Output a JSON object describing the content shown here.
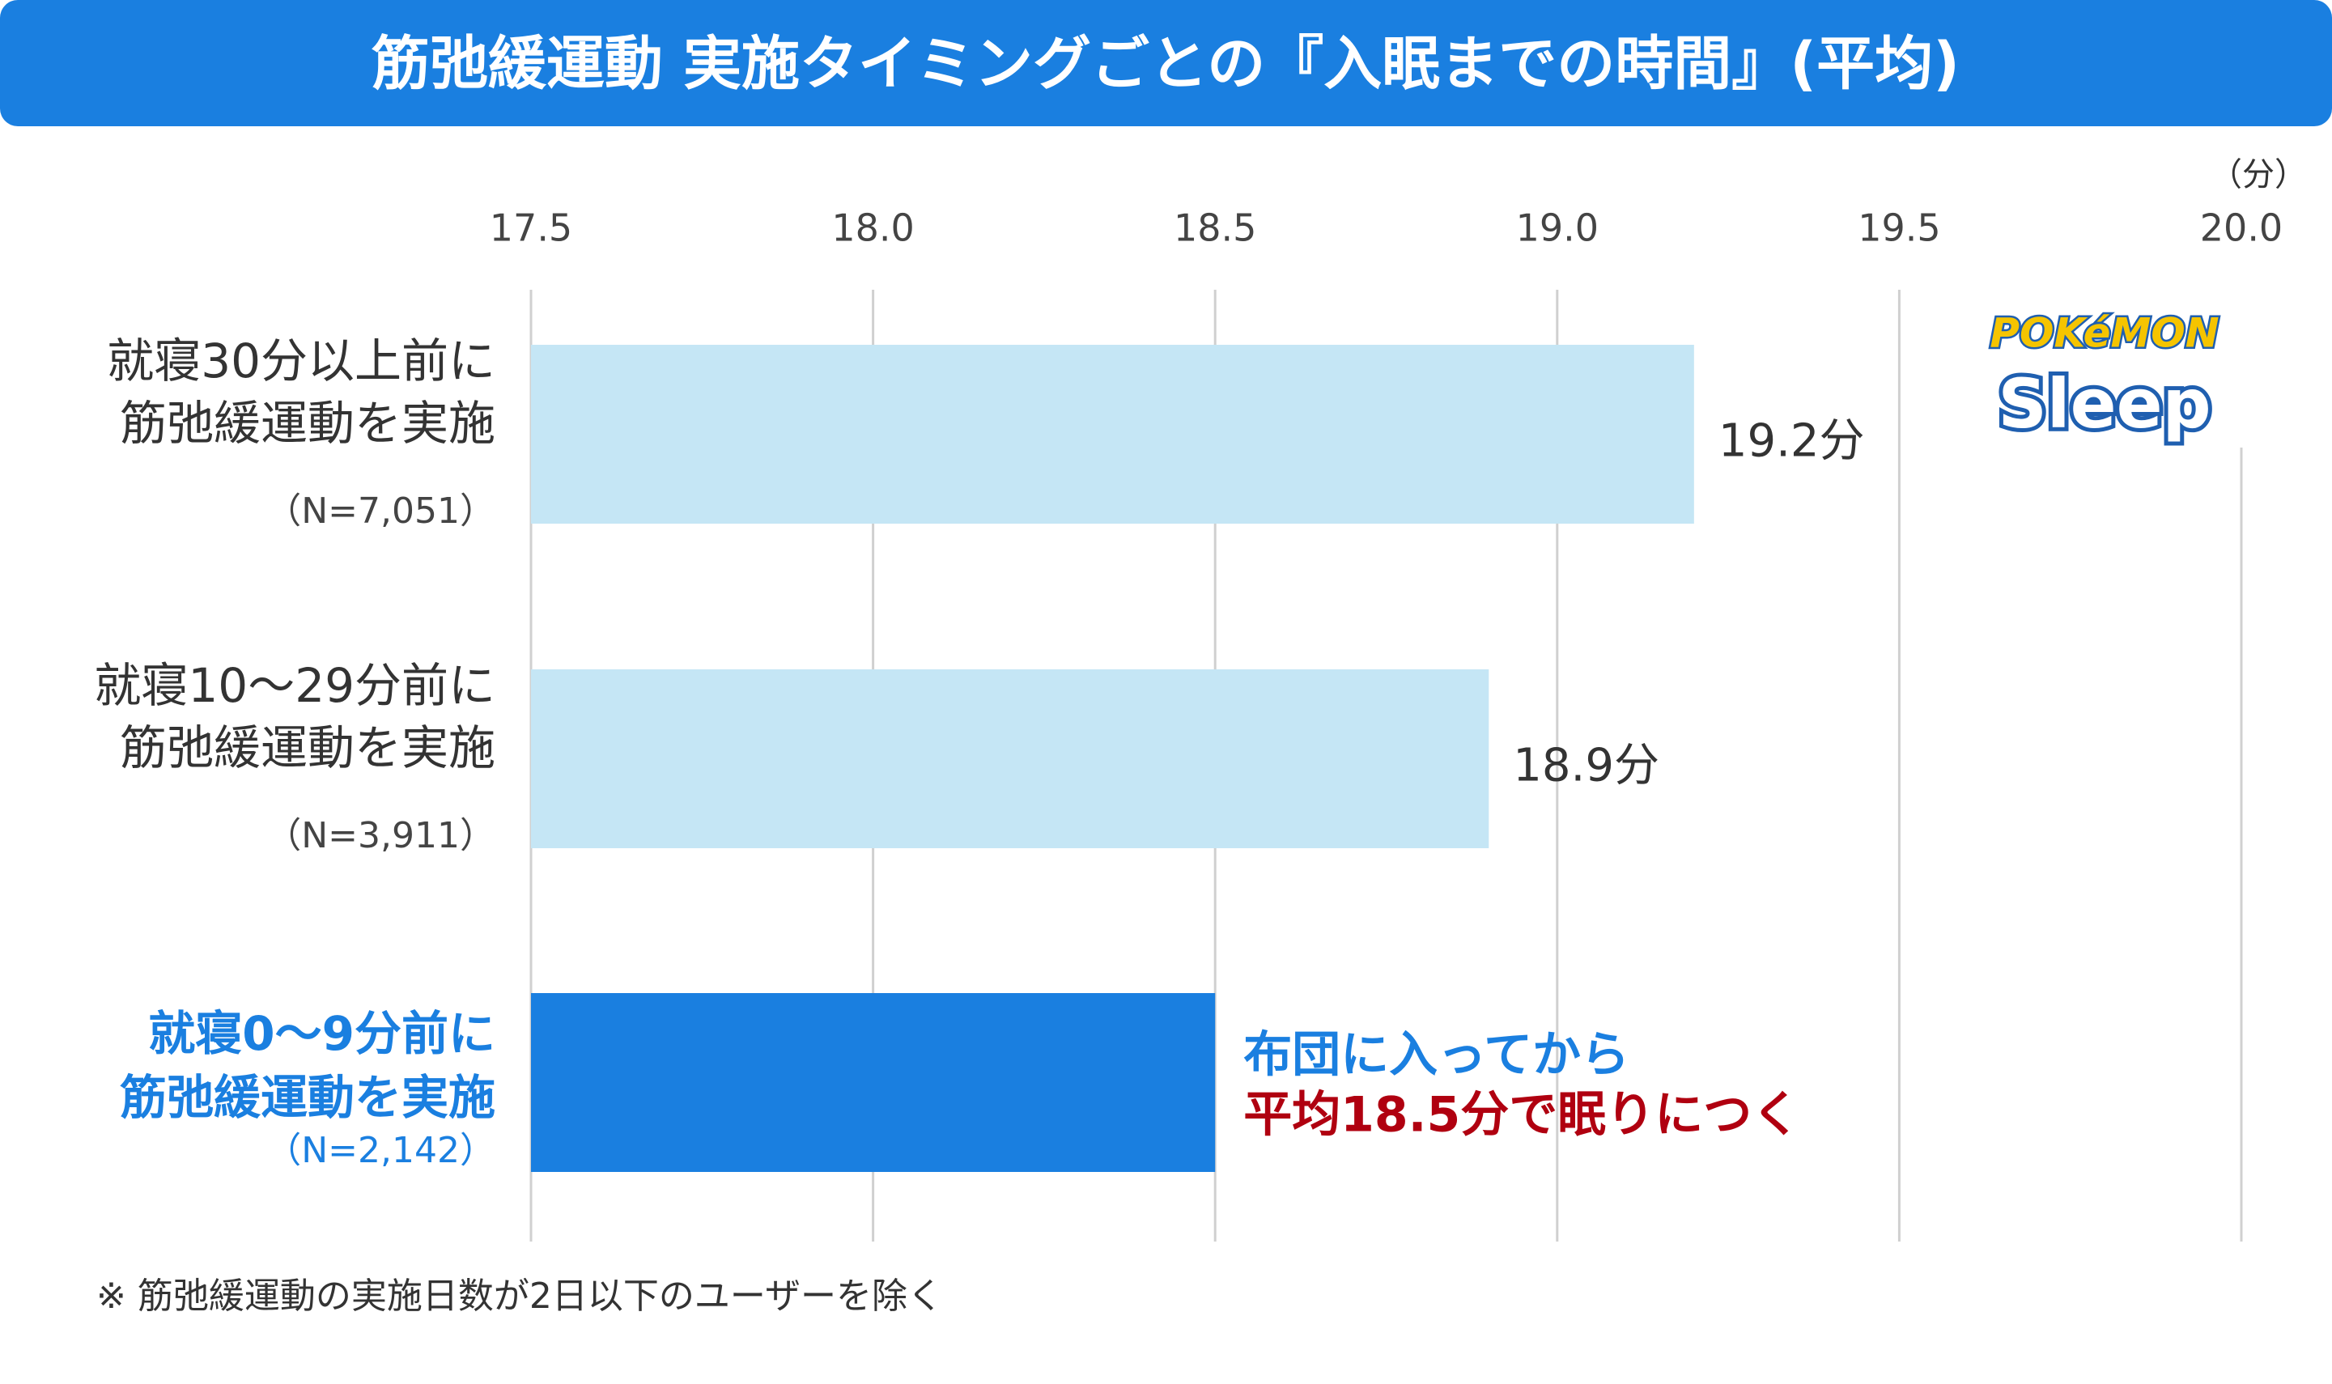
{
  "chart_data": {
    "type": "barh",
    "title": "筋弛緩運動 実施タイミングごとの『入眠までの時間』(平均)",
    "x_unit_label": "（分）",
    "categories": [
      [
        "就寝30分以上前に",
        "筋弛緩運動を実施"
      ],
      [
        "就寝10～29分前に",
        "筋弛緩運動を実施"
      ],
      [
        "就寝0～9分前に",
        "筋弛緩運動を実施"
      ]
    ],
    "sample_sizes": [
      "（N=7,051）",
      "（N=3,911）",
      "（N=2,142）"
    ],
    "values": [
      19.2,
      18.9,
      18.5
    ],
    "value_labels": [
      "19.2分",
      "18.9分",
      null
    ],
    "colors": [
      "#c5e6f5",
      "#c5e6f5",
      "#1a7fe0"
    ],
    "highlight_index": 2,
    "annotation": [
      {
        "text": "布団に入ってから",
        "color": "#1a7fe0"
      },
      {
        "text": "平均18.5分で眠りにつく",
        "color": "#b00010"
      }
    ],
    "xlim": [
      17.5,
      20.0
    ],
    "xticks": [
      17.5,
      {
        "value": 18,
        "label": "18.0"
      },
      18.5,
      {
        "value": 19,
        "label": "19.0"
      },
      19.5,
      {
        "value": 20,
        "label": "20.0"
      }
    ],
    "grid": true,
    "footnote": "※ 筋弛緩運動の実施日数が2日以下のユーザーを除く",
    "logo": [
      "POKéMON",
      "Sleep"
    ]
  }
}
